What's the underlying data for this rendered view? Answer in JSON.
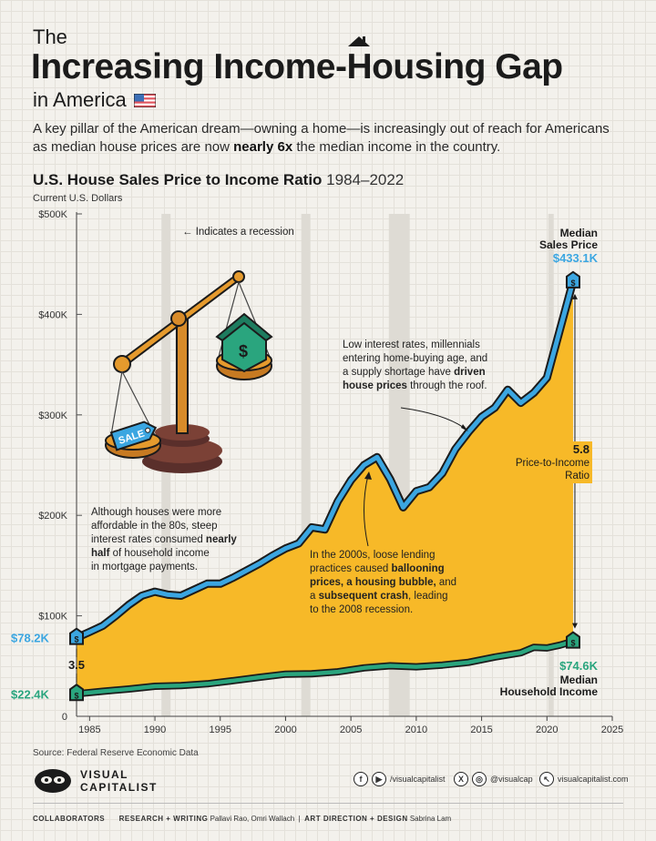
{
  "header": {
    "pre_title": "The",
    "title_part1": "Increasing Income-",
    "title_h": "H",
    "title_part2": "ousing Gap",
    "subtitle": "in America",
    "intro_part1": "A key pillar of the American dream—owning a home—is increasingly out of reach for Americans as median house prices are now ",
    "intro_bold": "nearly 6x",
    "intro_part2": " the median income in the country."
  },
  "chart_title": "U.S. House Sales Price to Income Ratio",
  "chart_years": "1984–2022",
  "unit_label": "Current U.S. Dollars",
  "recession_note": "Indicates a recession",
  "annotations": {
    "eighties_1": "Although houses were more",
    "eighties_2": "affordable in the 80s, steep",
    "eighties_3a": "interest rates consumed ",
    "eighties_3b": "nearly",
    "eighties_4a": "half",
    "eighties_4b": " of household income",
    "eighties_5": "in mortgage payments.",
    "bubble_1": "In the 2000s, loose lending",
    "bubble_2a": "practices caused ",
    "bubble_2b": "ballooning",
    "bubble_3a": "prices, a housing bubble,",
    "bubble_3b": " and",
    "bubble_4a": "a ",
    "bubble_4b": "subsequent crash",
    "bubble_4c": ", leading",
    "bubble_5": "to the 2008 recession.",
    "recent_1": "Low interest rates, millennials",
    "recent_2": "entering home-buying age, and",
    "recent_3a": "a supply shortage have ",
    "recent_3b": "driven",
    "recent_4a": "house prices",
    "recent_4b": " through the roof."
  },
  "labels": {
    "sales_title_1": "Median",
    "sales_title_2": "Sales Price",
    "sales_end_value": "$433.1K",
    "sales_start_value": "$78.2K",
    "income_start_value": "$22.4K",
    "income_end_value": "$74.6K",
    "income_title_1": "Median",
    "income_title_2": "Household Income",
    "ratio_start": "3.5",
    "ratio_end": "5.8",
    "ratio_label_1": "Price-to-Income",
    "ratio_label_2": "Ratio",
    "sale_tag": "SALE"
  },
  "source": "Source: Federal Reserve Economic Data",
  "brand": {
    "line1": "VISUAL",
    "line2": "CAPITALIST"
  },
  "social": {
    "facebook_youtube": "/visualcapitalist",
    "x_instagram": "@visualcap",
    "web": "visualcapitalist.com"
  },
  "collaborators": {
    "label": "COLLABORATORS",
    "research_label": "RESEARCH + WRITING",
    "research_names": "Pallavi Rao, Omri Wallach",
    "art_label": "ART DIRECTION + DESIGN",
    "art_names": "Sabrina Lam"
  },
  "colors": {
    "sales": "#3ba6e1",
    "income": "#2aa57e",
    "gap_fill": "#f7b928",
    "recession_band": "#dedbd4",
    "dark": "#1b1b1b"
  },
  "chart_data": {
    "type": "area",
    "title": "U.S. House Sales Price to Income Ratio",
    "subtitle": "1984–2022",
    "ylabel": "Current U.S. Dollars",
    "xlim": [
      1984,
      2025
    ],
    "ylim": [
      0,
      500000
    ],
    "x_ticks": [
      1985,
      1990,
      1995,
      2000,
      2005,
      2010,
      2015,
      2020,
      2025
    ],
    "y_ticks": [
      0,
      100000,
      200000,
      300000,
      400000,
      500000
    ],
    "y_tick_labels": [
      "0",
      "$100K",
      "$200K",
      "$300K",
      "$400K",
      "$500K"
    ],
    "recessions": [
      [
        1990.5,
        1991.2
      ],
      [
        2001.2,
        2001.9
      ],
      [
        2007.9,
        2009.5
      ],
      [
        2020.1,
        2020.4
      ]
    ],
    "series": [
      {
        "name": "Median Sales Price",
        "x": [
          1984,
          1985,
          1986,
          1987,
          1988,
          1989,
          1990,
          1991,
          1992,
          1993,
          1994,
          1995,
          1996,
          1997,
          1998,
          1999,
          2000,
          2001,
          2002,
          2003,
          2004,
          2005,
          2006,
          2007,
          2008,
          2009,
          2010,
          2011,
          2012,
          2013,
          2014,
          2015,
          2016,
          2017,
          2018,
          2019,
          2020,
          2021,
          2022
        ],
        "values": [
          78200,
          84000,
          90000,
          100000,
          111000,
          120000,
          124000,
          121000,
          120000,
          126000,
          132000,
          132000,
          138000,
          145000,
          152000,
          160000,
          167000,
          172000,
          188000,
          186000,
          214000,
          235000,
          250000,
          258000,
          236000,
          208000,
          224000,
          228000,
          242000,
          266000,
          283000,
          298000,
          307000,
          325000,
          312000,
          322000,
          337000,
          385000,
          433100
        ]
      },
      {
        "name": "Median Household Income",
        "x": [
          1984,
          1986,
          1988,
          1990,
          1992,
          1994,
          1996,
          1998,
          2000,
          2002,
          2004,
          2006,
          2008,
          2010,
          2012,
          2014,
          2016,
          2018,
          2019,
          2020,
          2021,
          2022
        ],
        "values": [
          22400,
          24900,
          27200,
          29900,
          30600,
          32300,
          35500,
          38900,
          41900,
          42400,
          44300,
          48200,
          50300,
          49300,
          51000,
          53700,
          59000,
          63200,
          68700,
          68000,
          70800,
          74600
        ]
      }
    ],
    "ratio_labels": [
      {
        "x": 1984,
        "value": 3.5
      },
      {
        "x": 2022,
        "value": 5.8
      }
    ]
  }
}
